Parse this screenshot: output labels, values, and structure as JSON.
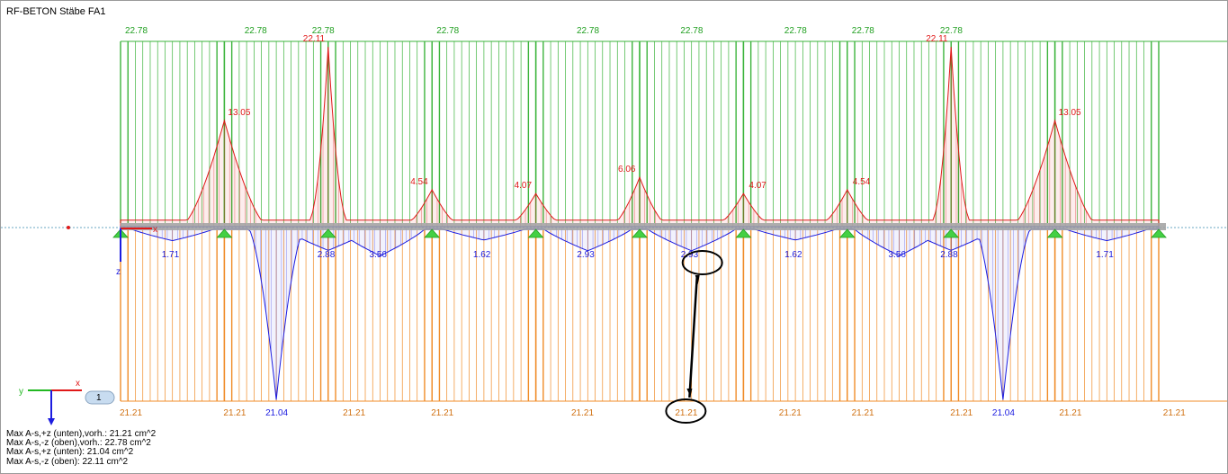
{
  "window": {
    "title": "RF-BETON Stäbe FA1"
  },
  "colors": {
    "top_reinf": "#3cb43c",
    "bottom_reinf": "#f08c28",
    "required_top": "#e01818",
    "required_bottom": "#1c1ce0",
    "beam": "#a0a0a0",
    "support": "#44d044",
    "highlight": "#000000"
  },
  "chart_data": {
    "type": "area",
    "title": "",
    "xlabel": "x",
    "ylabel": "z",
    "provided_top_labels": [
      {
        "x": 0.0,
        "value": "22.78"
      },
      {
        "x": 1.15,
        "value": "22.78"
      },
      {
        "x": 1.8,
        "value": "22.78"
      },
      {
        "x": 3.0,
        "value": "22.78"
      },
      {
        "x": 4.35,
        "value": "22.78"
      },
      {
        "x": 5.35,
        "value": "22.78"
      },
      {
        "x": 6.35,
        "value": "22.78"
      },
      {
        "x": 7.0,
        "value": "22.78"
      },
      {
        "x": 7.85,
        "value": "22.78"
      },
      {
        "x": 10.85,
        "value": "22.78"
      },
      {
        "x": 11.5,
        "value": "22.78"
      }
    ],
    "provided_bottom_labels": [
      {
        "x": 0.0,
        "value": "21.21"
      },
      {
        "x": 1.0,
        "value": "21.21"
      },
      {
        "x": 2.15,
        "value": "21.21"
      },
      {
        "x": 3.0,
        "value": "21.21"
      },
      {
        "x": 4.35,
        "value": "21.21"
      },
      {
        "x": 5.35,
        "value": "21.21"
      },
      {
        "x": 6.35,
        "value": "21.21"
      },
      {
        "x": 7.05,
        "value": "21.21"
      },
      {
        "x": 8.0,
        "value": "21.21"
      },
      {
        "x": 9.05,
        "value": "21.21"
      },
      {
        "x": 10.05,
        "value": "21.21"
      },
      {
        "x": 11.35,
        "value": "21.21"
      }
    ],
    "required_top_peaks": [
      {
        "x": 1.0,
        "value": "13.05"
      },
      {
        "x": 2.0,
        "value": "22.11"
      },
      {
        "x": 3.0,
        "value": "4.54"
      },
      {
        "x": 4.0,
        "value": "4.07"
      },
      {
        "x": 5.0,
        "value": "6.06"
      },
      {
        "x": 6.0,
        "value": "4.07"
      },
      {
        "x": 7.0,
        "value": "4.54"
      },
      {
        "x": 8.0,
        "value": "22.11"
      },
      {
        "x": 9.0,
        "value": "13.05"
      }
    ],
    "required_bottom_peaks": [
      {
        "x": 0.5,
        "value": "1.71"
      },
      {
        "x": 1.5,
        "value": "21.04"
      },
      {
        "x": 2.0,
        "value": "2.88"
      },
      {
        "x": 2.5,
        "value": "3.56"
      },
      {
        "x": 3.5,
        "value": "1.62"
      },
      {
        "x": 4.5,
        "value": "2.93"
      },
      {
        "x": 5.5,
        "value": "2.93"
      },
      {
        "x": 6.5,
        "value": "1.62"
      },
      {
        "x": 7.5,
        "value": "3.56"
      },
      {
        "x": 8.0,
        "value": "2.88"
      },
      {
        "x": 8.5,
        "value": "21.04"
      },
      {
        "x": 9.5,
        "value": "1.71"
      }
    ],
    "supports_x": [
      0,
      1,
      2,
      3,
      4,
      5,
      6,
      7,
      8,
      9,
      10
    ]
  },
  "axes": {
    "x_label": "x",
    "y_label": "y",
    "z_label": "z",
    "view_badge": "1"
  },
  "summary": [
    "Max A-s,+z (unten),vorh.: 21.21 cm^2",
    "Max A-s,-z (oben),vorh.: 22.78 cm^2",
    "Max A-s,+z (unten): 21.04 cm^2",
    "Max A-s,-z (oben): 22.11 cm^2"
  ]
}
